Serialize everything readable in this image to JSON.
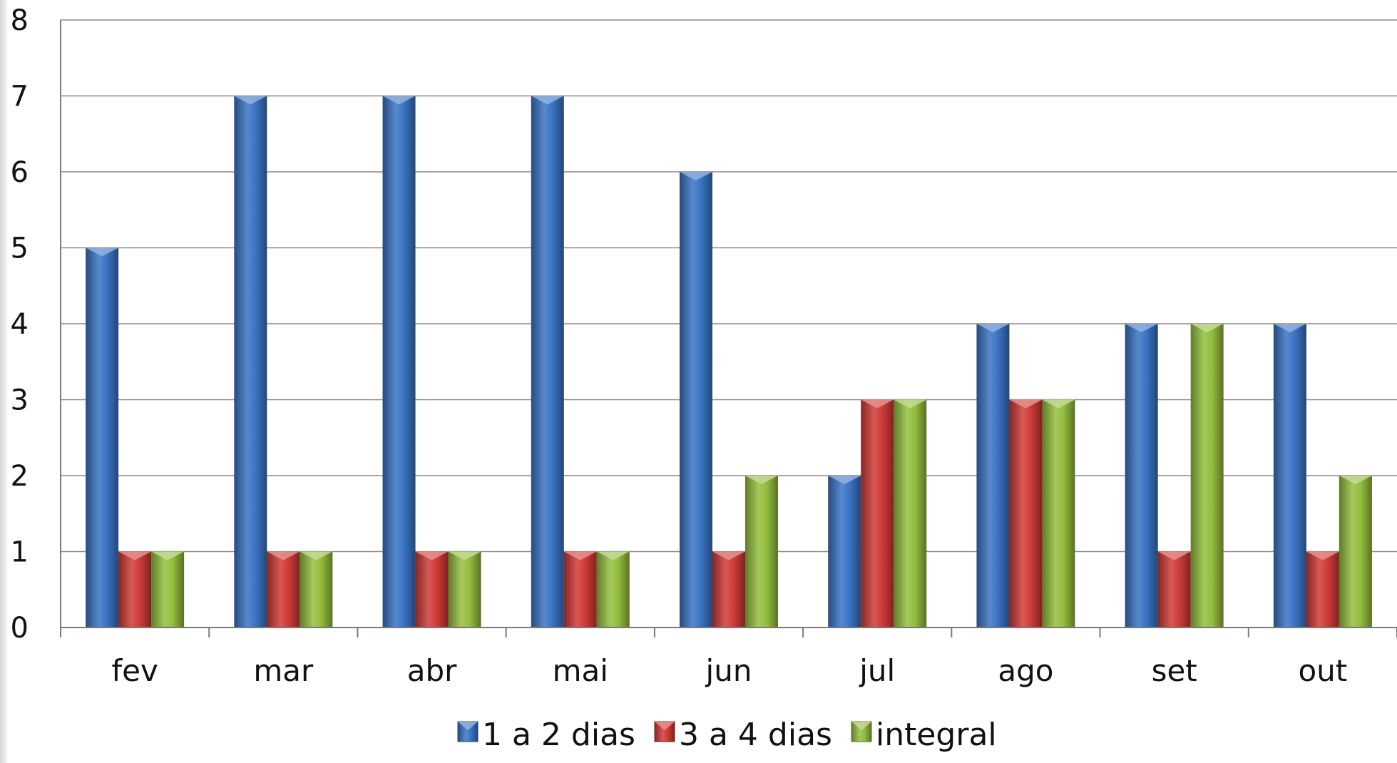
{
  "chart_data": {
    "type": "bar",
    "title": "",
    "xlabel": "",
    "ylabel": "",
    "categories": [
      "fev",
      "mar",
      "abr",
      "mai",
      "jun",
      "jul",
      "ago",
      "set",
      "out"
    ],
    "series": [
      {
        "name": "1 a 2 dias",
        "color": "#3a74c4",
        "values": [
          5,
          7,
          7,
          7,
          6,
          2,
          4,
          4,
          4
        ]
      },
      {
        "name": "3 a 4 dias",
        "color": "#d03b37",
        "values": [
          1,
          1,
          1,
          1,
          1,
          3,
          3,
          1,
          1
        ]
      },
      {
        "name": "integral",
        "color": "#94be3e",
        "values": [
          1,
          1,
          1,
          1,
          2,
          3,
          3,
          4,
          2
        ]
      }
    ],
    "ylim": [
      0,
      8
    ],
    "yticks": [
      0,
      1,
      2,
      3,
      4,
      5,
      6,
      7,
      8
    ],
    "grid": true,
    "legend_position": "bottom"
  }
}
